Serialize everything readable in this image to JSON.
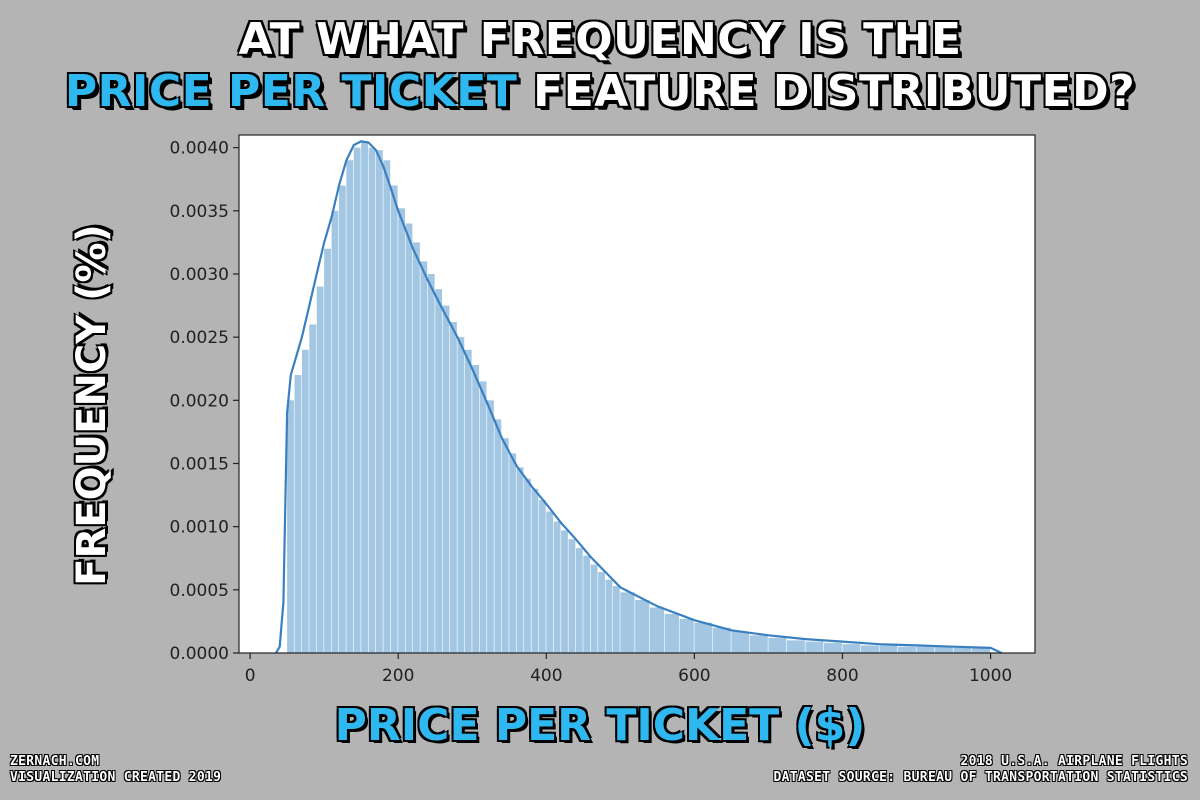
{
  "headline": {
    "line1": "AT WHAT FREQUENCY IS THE",
    "line2_accent": "PRICE PER TICKET",
    "line2_rest": " FEATURE DISTRIBUTED?"
  },
  "axis_titles": {
    "y": "FREQUENCY (%)",
    "x": "PRICE PER TICKET ($)"
  },
  "footer": {
    "left_line1": "ZERNACH.COM",
    "left_line2": "VISUALIZATION CREATED 2019",
    "right_line1": "2018 U.S.A. AIRPLANE FLIGHTS",
    "right_line2": "DATASET SOURCE: BUREAU OF TRANSPORTATION STATISTICS"
  },
  "colors": {
    "background": "#b4b4b4",
    "accent": "#2fb8f0",
    "bar_fill": "#a3c6e2",
    "kde_line": "#3a80c0"
  },
  "chart_data": {
    "type": "area",
    "xlim": [
      -15,
      1060
    ],
    "ylim": [
      0,
      0.0041
    ],
    "x_ticks": [
      0,
      200,
      400,
      600,
      800,
      1000
    ],
    "x_tick_labels": [
      "0",
      "200",
      "400",
      "600",
      "800",
      "1000"
    ],
    "y_ticks": [
      0,
      0.0005,
      0.001,
      0.0015,
      0.002,
      0.0025,
      0.003,
      0.0035,
      0.004
    ],
    "y_tick_labels": [
      "0.0000",
      "0.0005",
      "0.0010",
      "0.0015",
      "0.0020",
      "0.0025",
      "0.0030",
      "0.0035",
      "0.0040"
    ],
    "grid": false,
    "histogram": {
      "bin_edges": [
        50,
        60,
        70,
        80,
        90,
        100,
        110,
        120,
        130,
        140,
        150,
        160,
        170,
        180,
        190,
        200,
        210,
        220,
        230,
        240,
        250,
        260,
        270,
        280,
        290,
        300,
        310,
        320,
        330,
        340,
        350,
        360,
        370,
        380,
        390,
        400,
        410,
        420,
        430,
        440,
        450,
        460,
        470,
        480,
        490,
        500,
        520,
        540,
        560,
        580,
        600,
        625,
        650,
        675,
        700,
        725,
        750,
        775,
        800,
        825,
        850,
        875,
        900,
        925,
        950,
        975,
        1000
      ],
      "values": [
        0.002,
        0.0022,
        0.0024,
        0.0026,
        0.0029,
        0.0032,
        0.0035,
        0.0037,
        0.0039,
        0.004,
        0.00405,
        0.004,
        0.00398,
        0.0039,
        0.0037,
        0.00352,
        0.0034,
        0.00325,
        0.0031,
        0.003,
        0.00288,
        0.00275,
        0.00262,
        0.0025,
        0.0024,
        0.00228,
        0.00215,
        0.002,
        0.00185,
        0.0017,
        0.00158,
        0.00147,
        0.00138,
        0.0013,
        0.00121,
        0.00112,
        0.00104,
        0.00097,
        0.0009,
        0.00083,
        0.00077,
        0.0007,
        0.00064,
        0.00058,
        0.00053,
        0.00048,
        0.00042,
        0.00036,
        0.00031,
        0.00027,
        0.00024,
        0.0002,
        0.00017,
        0.00014,
        0.00012,
        0.0001,
        9e-05,
        8e-05,
        7e-05,
        6e-05,
        6e-05,
        5e-05,
        5e-05,
        5e-05,
        4e-05,
        4e-05
      ]
    },
    "kde": {
      "x": [
        35,
        40,
        45,
        50,
        55,
        60,
        70,
        80,
        90,
        100,
        110,
        120,
        130,
        140,
        150,
        160,
        170,
        180,
        190,
        200,
        220,
        240,
        260,
        280,
        300,
        320,
        340,
        360,
        380,
        400,
        420,
        440,
        460,
        480,
        500,
        550,
        600,
        650,
        700,
        750,
        800,
        850,
        900,
        950,
        1000,
        1015
      ],
      "y": [
        0,
        5e-05,
        0.0004,
        0.0019,
        0.0022,
        0.0023,
        0.0025,
        0.00275,
        0.003,
        0.00325,
        0.00345,
        0.0037,
        0.0039,
        0.00402,
        0.00405,
        0.00404,
        0.00398,
        0.00385,
        0.00368,
        0.0035,
        0.0032,
        0.00295,
        0.00272,
        0.0025,
        0.00225,
        0.00198,
        0.0017,
        0.00148,
        0.00132,
        0.00118,
        0.00103,
        0.0009,
        0.00076,
        0.00064,
        0.00052,
        0.00037,
        0.00026,
        0.00018,
        0.00014,
        0.00011,
        9e-05,
        7e-05,
        6e-05,
        5e-05,
        4e-05,
        0
      ]
    }
  }
}
